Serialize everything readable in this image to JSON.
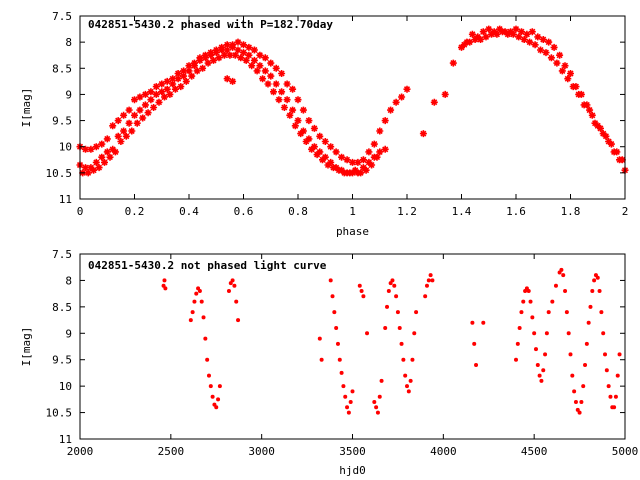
{
  "chart_data": [
    {
      "type": "scatter",
      "title": "042851-5430.2 phased with P=182.70day",
      "xlabel": "phase",
      "ylabel": "I[mag]",
      "xlim": [
        0,
        2
      ],
      "ylim": [
        11,
        7.5
      ],
      "y_inverted": true,
      "x_ticks": [
        "0",
        "0.2",
        "0.4",
        "0.6",
        "0.8",
        "1",
        "1.2",
        "1.4",
        "1.6",
        "1.8",
        "2"
      ],
      "y_ticks": [
        "7.5",
        "8",
        "8.5",
        "9",
        "9.5",
        "10",
        "10.5",
        "11"
      ],
      "grid": false,
      "legend": "none",
      "marker": "star",
      "color": "#ff0000",
      "series": [
        {
          "x": [
            0.0,
            0.02,
            0.04,
            0.06,
            0.08,
            0.1,
            0.12,
            0.14,
            0.16,
            0.18,
            0.2,
            0.22,
            0.24,
            0.26,
            0.28,
            0.3,
            0.32,
            0.34,
            0.36,
            0.38,
            0.4,
            0.42,
            0.44,
            0.46,
            0.48,
            0.5,
            0.52,
            0.54,
            0.56,
            0.58,
            0.6,
            0.62,
            0.64,
            0.66,
            0.68,
            0.7,
            0.72,
            0.74,
            0.76,
            0.78,
            0.8,
            0.82,
            0.84,
            0.86,
            0.88,
            0.9,
            0.92,
            0.94,
            0.96,
            0.98,
            1.0,
            1.02,
            1.04,
            1.06,
            1.08,
            1.1,
            1.12,
            1.14,
            1.16,
            1.18,
            1.2,
            0.0,
            0.02,
            0.04,
            0.06,
            0.08,
            0.1,
            0.12,
            0.14,
            0.16,
            0.18,
            0.2,
            0.22,
            0.24,
            0.26,
            0.28,
            0.3,
            0.32,
            0.34,
            0.36,
            0.38,
            0.4,
            0.42,
            0.44,
            0.46,
            0.48,
            0.5,
            0.52,
            0.54,
            0.56,
            0.58,
            0.6,
            0.62,
            0.64,
            0.66,
            0.68,
            0.7,
            0.72,
            0.74,
            0.76,
            0.78,
            0.8,
            0.82,
            0.84,
            0.86,
            0.88,
            0.9,
            0.92,
            0.94,
            0.96,
            0.98,
            1.0,
            1.02,
            1.04,
            1.06,
            1.08,
            1.1,
            1.12,
            0.01,
            0.03,
            0.05,
            0.07,
            0.09,
            0.11,
            0.13,
            0.15,
            0.17,
            0.19,
            0.21,
            0.23,
            0.25,
            0.27,
            0.29,
            0.31,
            0.33,
            0.35,
            0.37,
            0.39,
            0.41,
            0.43,
            0.45,
            0.47,
            0.49,
            0.51,
            0.53,
            0.55,
            0.57,
            0.59,
            0.61,
            0.63,
            0.65,
            0.67,
            0.69,
            0.71,
            0.73,
            0.75,
            0.77,
            0.79,
            0.81,
            0.83,
            0.85,
            0.87,
            0.89,
            0.91,
            0.93,
            0.95,
            0.97,
            0.99,
            1.01,
            1.03,
            1.05,
            1.07,
            1.09,
            0.54,
            0.56,
            1.26,
            1.3,
            1.34,
            1.37,
            1.4,
            1.42,
            1.44,
            1.46,
            1.48,
            1.5,
            1.52,
            1.54,
            1.56,
            1.58,
            1.6,
            1.62,
            1.64,
            1.66,
            1.68,
            1.7,
            1.72,
            1.74,
            1.76,
            1.78,
            1.8,
            1.82,
            1.84,
            1.86,
            1.88,
            1.9,
            1.92,
            1.94,
            1.96,
            1.98,
            2.0,
            1.41,
            1.43,
            1.45,
            1.47,
            1.49,
            1.51,
            1.53,
            1.55,
            1.57,
            1.59,
            1.61,
            1.63,
            1.65,
            1.67,
            1.69,
            1.71,
            1.73,
            1.75,
            1.77,
            1.79,
            1.81,
            1.83,
            1.85,
            1.87,
            1.89,
            1.91,
            1.93,
            1.95,
            1.97,
            1.99
          ],
          "y": [
            10.0,
            10.05,
            10.05,
            10.0,
            9.95,
            9.85,
            9.6,
            9.5,
            9.4,
            9.3,
            9.1,
            9.05,
            9.0,
            8.95,
            8.85,
            8.8,
            8.75,
            8.7,
            8.6,
            8.55,
            8.45,
            8.4,
            8.3,
            8.25,
            8.2,
            8.15,
            8.1,
            8.05,
            8.05,
            8.0,
            8.05,
            8.1,
            8.15,
            8.25,
            8.3,
            8.4,
            8.5,
            8.6,
            8.8,
            8.9,
            9.1,
            9.3,
            9.5,
            9.65,
            9.8,
            9.9,
            10.0,
            10.1,
            10.2,
            10.25,
            10.3,
            10.3,
            10.25,
            10.1,
            9.95,
            9.7,
            9.5,
            9.3,
            9.15,
            9.05,
            8.9,
            10.35,
            10.4,
            10.4,
            10.3,
            10.2,
            10.1,
            10.05,
            9.8,
            9.7,
            9.55,
            9.4,
            9.3,
            9.2,
            9.1,
            9.0,
            8.95,
            8.9,
            8.8,
            8.7,
            8.65,
            8.55,
            8.45,
            8.35,
            8.3,
            8.25,
            8.2,
            8.15,
            8.15,
            8.1,
            8.15,
            8.2,
            8.25,
            8.35,
            8.45,
            8.55,
            8.65,
            8.8,
            8.95,
            9.1,
            9.3,
            9.5,
            9.7,
            9.85,
            10.0,
            10.1,
            10.2,
            10.3,
            10.4,
            10.45,
            10.5,
            10.5,
            10.5,
            10.4,
            10.3,
            10.2,
            10.1,
            10.05,
            10.5,
            10.5,
            10.45,
            10.4,
            10.3,
            10.2,
            10.1,
            9.9,
            9.8,
            9.7,
            9.55,
            9.45,
            9.35,
            9.25,
            9.15,
            9.05,
            9.0,
            8.9,
            8.85,
            8.75,
            8.65,
            8.55,
            8.5,
            8.4,
            8.35,
            8.3,
            8.25,
            8.25,
            8.25,
            8.3,
            8.35,
            8.45,
            8.55,
            8.7,
            8.8,
            8.95,
            9.1,
            9.25,
            9.4,
            9.6,
            9.75,
            9.9,
            10.05,
            10.15,
            10.25,
            10.35,
            10.4,
            10.45,
            10.5,
            10.5,
            10.45,
            10.5,
            10.45,
            10.35,
            10.2,
            8.7,
            8.75,
            9.75,
            9.15,
            9.0,
            8.4,
            8.1,
            8.0,
            7.85,
            7.9,
            7.8,
            7.75,
            7.8,
            7.75,
            7.8,
            7.8,
            7.75,
            7.8,
            7.85,
            7.8,
            7.9,
            7.95,
            8.0,
            8.1,
            8.25,
            8.45,
            8.6,
            8.85,
            9.0,
            9.2,
            9.4,
            9.6,
            9.75,
            9.9,
            10.1,
            10.25,
            10.45,
            8.05,
            8.0,
            7.95,
            7.95,
            7.9,
            7.85,
            7.85,
            7.8,
            7.85,
            7.85,
            7.9,
            7.95,
            8.0,
            8.05,
            8.15,
            8.2,
            8.3,
            8.4,
            8.55,
            8.7,
            8.85,
            9.0,
            9.2,
            9.3,
            9.55,
            9.65,
            9.8,
            9.95,
            10.1,
            10.25
          ]
        }
      ]
    },
    {
      "type": "scatter",
      "title": "042851-5430.2 not phased light curve",
      "xlabel": "hjd0",
      "ylabel": "I[mag]",
      "xlim": [
        2000,
        5000
      ],
      "ylim": [
        11,
        7.5
      ],
      "y_inverted": true,
      "x_ticks": [
        "2000",
        "2500",
        "3000",
        "3500",
        "4000",
        "4500",
        "5000"
      ],
      "y_ticks": [
        "7.5",
        "8",
        "8.5",
        "9",
        "9.5",
        "10",
        "10.5",
        "11"
      ],
      "grid": false,
      "legend": "none",
      "marker": "dot",
      "color": "#ff0000",
      "series": [
        {
          "x": [
            2460,
            2465,
            2470,
            2610,
            2620,
            2630,
            2640,
            2650,
            2660,
            2670,
            2680,
            2690,
            2700,
            2710,
            2720,
            2730,
            2740,
            2750,
            2760,
            2770,
            2820,
            2830,
            2840,
            2850,
            2860,
            2870,
            3320,
            3330,
            3380,
            3390,
            3400,
            3410,
            3420,
            3430,
            3440,
            3450,
            3460,
            3470,
            3480,
            3490,
            3500,
            3540,
            3550,
            3560,
            3580,
            3620,
            3630,
            3640,
            3650,
            3660,
            3680,
            3690,
            3700,
            3710,
            3720,
            3730,
            3740,
            3750,
            3760,
            3770,
            3780,
            3790,
            3800,
            3810,
            3820,
            3830,
            3840,
            3850,
            3900,
            3910,
            3920,
            3930,
            3940,
            4160,
            4170,
            4180,
            4220,
            4400,
            4410,
            4420,
            4430,
            4440,
            4450,
            4460,
            4470,
            4480,
            4490,
            4500,
            4510,
            4520,
            4530,
            4540,
            4550,
            4560,
            4570,
            4580,
            4600,
            4620,
            4640,
            4650,
            4660,
            4670,
            4680,
            4690,
            4700,
            4710,
            4720,
            4730,
            4740,
            4750,
            4760,
            4770,
            4780,
            4790,
            4800,
            4810,
            4820,
            4830,
            4840,
            4850,
            4860,
            4870,
            4880,
            4890,
            4900,
            4910,
            4920,
            4930,
            4940,
            4950,
            4960,
            4970
          ],
          "y": [
            8.1,
            8.0,
            8.15,
            8.75,
            8.6,
            8.4,
            8.25,
            8.15,
            8.2,
            8.4,
            8.7,
            9.1,
            9.5,
            9.8,
            10.0,
            10.2,
            10.35,
            10.4,
            10.25,
            10.0,
            8.2,
            8.05,
            8.0,
            8.1,
            8.4,
            8.75,
            9.1,
            9.5,
            8.0,
            8.3,
            8.6,
            8.9,
            9.2,
            9.5,
            9.75,
            10.0,
            10.2,
            10.4,
            10.5,
            10.3,
            10.1,
            8.1,
            8.2,
            8.3,
            9.0,
            10.3,
            10.4,
            10.5,
            10.2,
            9.9,
            8.9,
            8.5,
            8.2,
            8.05,
            8.0,
            8.1,
            8.3,
            8.6,
            8.9,
            9.2,
            9.5,
            9.8,
            10.0,
            10.1,
            9.9,
            9.5,
            9.0,
            8.6,
            8.3,
            8.1,
            8.0,
            7.9,
            8.0,
            8.8,
            9.2,
            9.6,
            8.8,
            9.5,
            9.2,
            8.9,
            8.6,
            8.4,
            8.2,
            8.15,
            8.2,
            8.4,
            8.7,
            9.0,
            9.3,
            9.6,
            9.8,
            9.9,
            9.7,
            9.4,
            9.0,
            8.6,
            8.4,
            8.1,
            7.85,
            7.8,
            7.9,
            8.2,
            8.6,
            9.0,
            9.4,
            9.8,
            10.1,
            10.3,
            10.45,
            10.5,
            10.3,
            10.0,
            9.6,
            9.2,
            8.8,
            8.5,
            8.2,
            8.0,
            7.9,
            7.95,
            8.2,
            8.6,
            9.0,
            9.4,
            9.7,
            10.0,
            10.2,
            10.4,
            10.4,
            10.2,
            9.8,
            9.4
          ]
        }
      ]
    }
  ]
}
